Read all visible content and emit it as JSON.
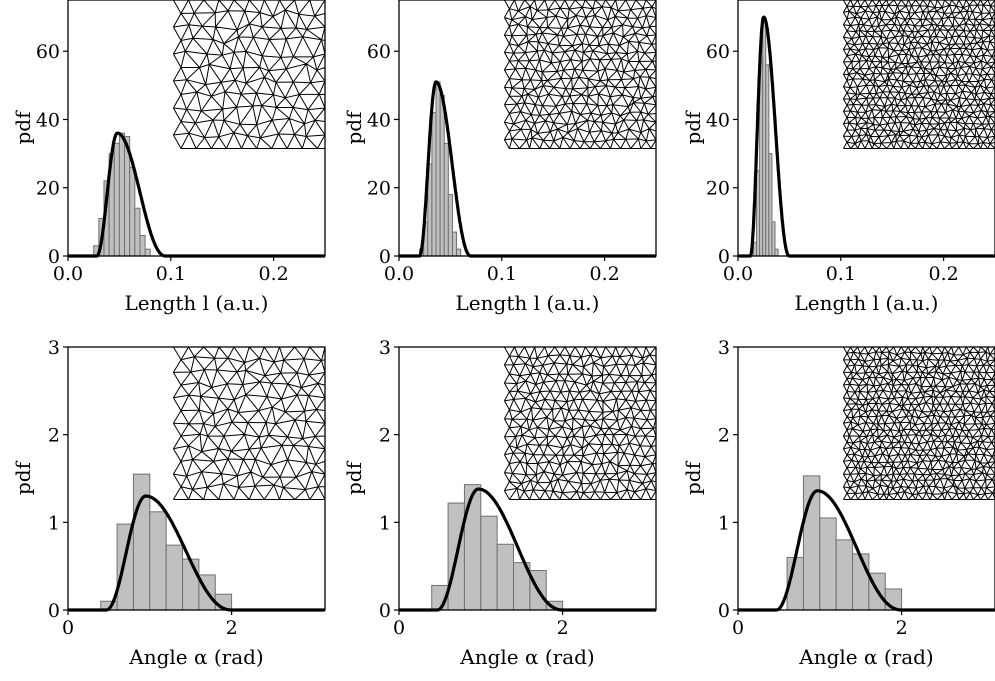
{
  "chart_data": [
    {
      "type": "histogram",
      "panel": "top-left",
      "xlabel": "Length l (a.u.)",
      "ylabel": "pdf",
      "xlim": [
        0.0,
        0.25
      ],
      "ylim": [
        0,
        75
      ],
      "xticks": [
        "0.0",
        "0.1",
        "0.2"
      ],
      "yticks": [
        "0",
        "20",
        "40",
        "60"
      ],
      "bins": [
        [
          0.025,
          0.03
        ],
        [
          0.03,
          0.035
        ],
        [
          0.035,
          0.04
        ],
        [
          0.04,
          0.045
        ],
        [
          0.045,
          0.05
        ],
        [
          0.05,
          0.055
        ],
        [
          0.055,
          0.06
        ],
        [
          0.06,
          0.065
        ],
        [
          0.065,
          0.07
        ],
        [
          0.07,
          0.075
        ],
        [
          0.075,
          0.08
        ]
      ],
      "values": [
        3,
        11,
        22,
        30,
        33,
        36,
        35,
        26,
        14,
        6,
        2
      ],
      "fit_curve": {
        "peak_x": 0.048,
        "peak_y": 36,
        "support": [
          0.028,
          0.095
        ]
      },
      "inset": "triangular mesh (coarse)"
    },
    {
      "type": "histogram",
      "panel": "top-center",
      "xlabel": "Length l (a.u.)",
      "ylabel": "pdf",
      "xlim": [
        0.0,
        0.25
      ],
      "ylim": [
        0,
        75
      ],
      "xticks": [
        "0.0",
        "0.1",
        "0.2"
      ],
      "yticks": [
        "0",
        "20",
        "40",
        "60"
      ],
      "bins": [
        [
          0.02,
          0.024
        ],
        [
          0.024,
          0.028
        ],
        [
          0.028,
          0.032
        ],
        [
          0.032,
          0.036
        ],
        [
          0.036,
          0.04
        ],
        [
          0.04,
          0.044
        ],
        [
          0.044,
          0.048
        ],
        [
          0.048,
          0.052
        ],
        [
          0.052,
          0.056
        ],
        [
          0.056,
          0.06
        ]
      ],
      "values": [
        2,
        10,
        27,
        42,
        51,
        47,
        33,
        18,
        7,
        2
      ],
      "fit_curve": {
        "peak_x": 0.036,
        "peak_y": 51,
        "support": [
          0.02,
          0.07
        ]
      },
      "inset": "triangular mesh (medium)"
    },
    {
      "type": "histogram",
      "panel": "top-right",
      "xlabel": "Length l (a.u.)",
      "ylabel": "pdf",
      "xlim": [
        0.0,
        0.25
      ],
      "ylim": [
        0,
        75
      ],
      "xticks": [
        "0.0",
        "0.1",
        "0.2"
      ],
      "yticks": [
        "0",
        "20",
        "40",
        "60"
      ],
      "bins": [
        [
          0.015,
          0.018
        ],
        [
          0.018,
          0.021
        ],
        [
          0.021,
          0.024
        ],
        [
          0.024,
          0.027
        ],
        [
          0.027,
          0.03
        ],
        [
          0.03,
          0.033
        ],
        [
          0.033,
          0.036
        ],
        [
          0.036,
          0.039
        ]
      ],
      "values": [
        4,
        25,
        58,
        70,
        56,
        30,
        10,
        2
      ],
      "fit_curve": {
        "peak_x": 0.025,
        "peak_y": 70,
        "support": [
          0.012,
          0.05
        ]
      },
      "inset": "triangular mesh (fine)"
    },
    {
      "type": "histogram",
      "panel": "bottom-left",
      "xlabel": "Angle α (rad)",
      "ylabel": "pdf",
      "xlim": [
        0,
        3.14159
      ],
      "ylim": [
        0,
        3
      ],
      "xticks": [
        "0",
        "2"
      ],
      "yticks": [
        "0",
        "1",
        "2",
        "3"
      ],
      "bins": [
        [
          0.4,
          0.6
        ],
        [
          0.6,
          0.8
        ],
        [
          0.8,
          1.0
        ],
        [
          1.0,
          1.2
        ],
        [
          1.2,
          1.4
        ],
        [
          1.4,
          1.6
        ],
        [
          1.6,
          1.8
        ],
        [
          1.8,
          2.0
        ]
      ],
      "values": [
        0.1,
        0.98,
        1.55,
        1.12,
        0.74,
        0.58,
        0.4,
        0.18
      ],
      "fit_curve": {
        "peak_x": 0.95,
        "peak_y": 1.3,
        "support": [
          0.47,
          2.0
        ]
      },
      "inset": "triangular mesh (coarse)"
    },
    {
      "type": "histogram",
      "panel": "bottom-center",
      "xlabel": "Angle α (rad)",
      "ylabel": "pdf",
      "xlim": [
        0,
        3.14159
      ],
      "ylim": [
        0,
        3
      ],
      "xticks": [
        "0",
        "2"
      ],
      "yticks": [
        "0",
        "1",
        "2",
        "3"
      ],
      "bins": [
        [
          0.4,
          0.6
        ],
        [
          0.6,
          0.8
        ],
        [
          0.8,
          1.0
        ],
        [
          1.0,
          1.2
        ],
        [
          1.2,
          1.4
        ],
        [
          1.4,
          1.6
        ],
        [
          1.6,
          1.8
        ],
        [
          1.8,
          2.0
        ]
      ],
      "values": [
        0.28,
        1.22,
        1.43,
        1.07,
        0.75,
        0.54,
        0.45,
        0.1
      ],
      "fit_curve": {
        "peak_x": 0.97,
        "peak_y": 1.38,
        "support": [
          0.47,
          2.0
        ]
      },
      "inset": "triangular mesh (medium)"
    },
    {
      "type": "histogram",
      "panel": "bottom-right",
      "xlabel": "Angle α (rad)",
      "ylabel": "pdf",
      "xlim": [
        0,
        3.14159
      ],
      "ylim": [
        0,
        3
      ],
      "xticks": [
        "0",
        "2"
      ],
      "yticks": [
        "0",
        "1",
        "2",
        "3"
      ],
      "bins": [
        [
          0.4,
          0.6
        ],
        [
          0.6,
          0.8
        ],
        [
          0.8,
          1.0
        ],
        [
          1.0,
          1.2
        ],
        [
          1.2,
          1.4
        ],
        [
          1.4,
          1.6
        ],
        [
          1.6,
          1.8
        ],
        [
          1.8,
          2.0
        ]
      ],
      "values": [
        0.0,
        0.6,
        1.53,
        1.05,
        0.8,
        0.64,
        0.42,
        0.24
      ],
      "fit_curve": {
        "peak_x": 0.97,
        "peak_y": 1.36,
        "support": [
          0.47,
          2.0
        ]
      },
      "inset": "triangular mesh (fine)"
    }
  ],
  "style": {
    "bar_fill": "#c0c0c0",
    "bar_stroke": "#707070",
    "curve_color": "#000000",
    "inset_background": "#ffffff",
    "inset_line_color": "#000000"
  }
}
